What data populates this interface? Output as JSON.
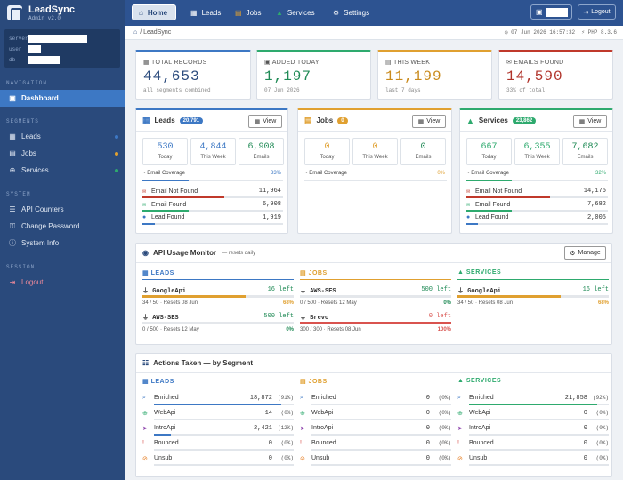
{
  "colors": {
    "leads": "#3d78c4",
    "jobs": "#e0a030",
    "services": "#2eaa6e",
    "emails": "#c0392b",
    "danger": "#d9534f"
  },
  "brand": {
    "name": "LeadSync",
    "version": "Admin v2.0"
  },
  "info": {
    "server_label": "server",
    "user_label": "user",
    "db_label": "db"
  },
  "sidebar": {
    "nav_title": "NAVIGATION",
    "seg_title": "SEGMENTS",
    "sys_title": "SYSTEM",
    "ses_title": "SESSION",
    "dashboard": "Dashboard",
    "leads": "Leads",
    "jobs": "Jobs",
    "services": "Services",
    "api_counters": "API Counters",
    "change_password": "Change Password",
    "system_info": "System Info",
    "logout": "Logout"
  },
  "topbar": {
    "home": "Home",
    "leads": "Leads",
    "jobs": "Jobs",
    "services": "Services",
    "settings": "Settings",
    "logout": "Logout"
  },
  "crumb": {
    "path": "/ LeadSync",
    "datetime": "07 Jun 2026 16:57:32",
    "version": "PHP 8.3.6"
  },
  "kpis": [
    {
      "label": "TOTAL RECORDS",
      "value": "44,653",
      "sub": "all segments combined"
    },
    {
      "label": "ADDED TODAY",
      "value": "1,197",
      "sub": "07 Jun 2026"
    },
    {
      "label": "THIS WEEK",
      "value": "11,199",
      "sub": "last 7 days"
    },
    {
      "label": "EMAILS FOUND",
      "value": "14,590",
      "sub": "33% of total"
    }
  ],
  "segments": {
    "leads": {
      "title": "Leads",
      "badge": "20,791",
      "view": "View",
      "tiles": [
        {
          "value": "530",
          "label": "Today"
        },
        {
          "value": "4,844",
          "label": "This Week"
        },
        {
          "value": "6,908",
          "label": "Emails"
        }
      ],
      "coverage_label": "Email Coverage",
      "coverage_pct": "33%",
      "coverage": 0.33,
      "stats": [
        {
          "label": "Email Not Found",
          "value": "11,964",
          "frac": 0.58
        },
        {
          "label": "Email Found",
          "value": "6,908",
          "frac": 0.33
        },
        {
          "label": "Lead Found",
          "value": "1,919",
          "frac": 0.09
        }
      ]
    },
    "jobs": {
      "title": "Jobs",
      "badge": "0",
      "view": "View",
      "tiles": [
        {
          "value": "0",
          "label": "Today"
        },
        {
          "value": "0",
          "label": "This Week"
        },
        {
          "value": "0",
          "label": "Emails"
        }
      ],
      "coverage_label": "Email Coverage",
      "coverage_pct": "0%",
      "coverage": 0
    },
    "services": {
      "title": "Services",
      "badge": "23,862",
      "view": "View",
      "tiles": [
        {
          "value": "667",
          "label": "Today"
        },
        {
          "value": "6,355",
          "label": "This Week"
        },
        {
          "value": "7,682",
          "label": "Emails"
        }
      ],
      "coverage_label": "Email Coverage",
      "coverage_pct": "32%",
      "coverage": 0.32,
      "stats": [
        {
          "label": "Email Not Found",
          "value": "14,175",
          "frac": 0.59
        },
        {
          "label": "Email Found",
          "value": "7,682",
          "frac": 0.32
        },
        {
          "label": "Lead Found",
          "value": "2,005",
          "frac": 0.08
        }
      ]
    }
  },
  "api": {
    "title": "API Usage Monitor",
    "note": "— resets daily",
    "manage": "Manage",
    "leads": {
      "head": "LEADS",
      "rows": [
        {
          "name": "GoogleApi",
          "left": "16 left",
          "usage": "34 / 50  ·  Resets 08 Jun",
          "pct": "68%",
          "frac": 0.68
        },
        {
          "name": "AWS-SES",
          "left": "500 left",
          "usage": "0 / 500  ·  Resets 12 May",
          "pct": "0%",
          "frac": 0
        }
      ]
    },
    "jobs": {
      "head": "JOBS",
      "rows": [
        {
          "name": "AWS-SES",
          "left": "500 left",
          "usage": "0 / 500  ·  Resets 12 May",
          "pct": "0%",
          "frac": 0
        },
        {
          "name": "Brevo",
          "left": "0 left",
          "usage": "300 / 300  ·  Resets 08 Jun",
          "pct": "100%",
          "frac": 1
        }
      ]
    },
    "services": {
      "head": "SERVICES",
      "rows": [
        {
          "name": "GoogleApi",
          "left": "16 left",
          "usage": "34 / 50  ·  Resets 08 Jun",
          "pct": "68%",
          "frac": 0.68
        }
      ]
    }
  },
  "actions": {
    "title": "Actions Taken — by Segment",
    "leads": {
      "head": "LEADS",
      "rows": [
        {
          "label": "Enriched",
          "value": "18,872",
          "pct": "(91%)",
          "frac": 0.91
        },
        {
          "label": "WebApi",
          "value": "14",
          "pct": "(0%)",
          "frac": 0
        },
        {
          "label": "IntroApi",
          "value": "2,421",
          "pct": "(12%)",
          "frac": 0.12
        },
        {
          "label": "Bounced",
          "value": "0",
          "pct": "(0%)",
          "frac": 0
        },
        {
          "label": "Unsub",
          "value": "0",
          "pct": "(0%)",
          "frac": 0
        }
      ]
    },
    "jobs": {
      "head": "JOBS",
      "rows": [
        {
          "label": "Enriched",
          "value": "0",
          "pct": "(0%)",
          "frac": 0
        },
        {
          "label": "WebApi",
          "value": "0",
          "pct": "(0%)",
          "frac": 0
        },
        {
          "label": "IntroApi",
          "value": "0",
          "pct": "(0%)",
          "frac": 0
        },
        {
          "label": "Bounced",
          "value": "0",
          "pct": "(0%)",
          "frac": 0
        },
        {
          "label": "Unsub",
          "value": "0",
          "pct": "(0%)",
          "frac": 0
        }
      ]
    },
    "services": {
      "head": "SERVICES",
      "rows": [
        {
          "label": "Enriched",
          "value": "21,858",
          "pct": "(92%)",
          "frac": 0.92
        },
        {
          "label": "WebApi",
          "value": "0",
          "pct": "(0%)",
          "frac": 0
        },
        {
          "label": "IntroApi",
          "value": "0",
          "pct": "(0%)",
          "frac": 0
        },
        {
          "label": "Bounced",
          "value": "0",
          "pct": "(0%)",
          "frac": 0
        },
        {
          "label": "Unsub",
          "value": "0",
          "pct": "(0%)",
          "frac": 0
        }
      ]
    }
  }
}
